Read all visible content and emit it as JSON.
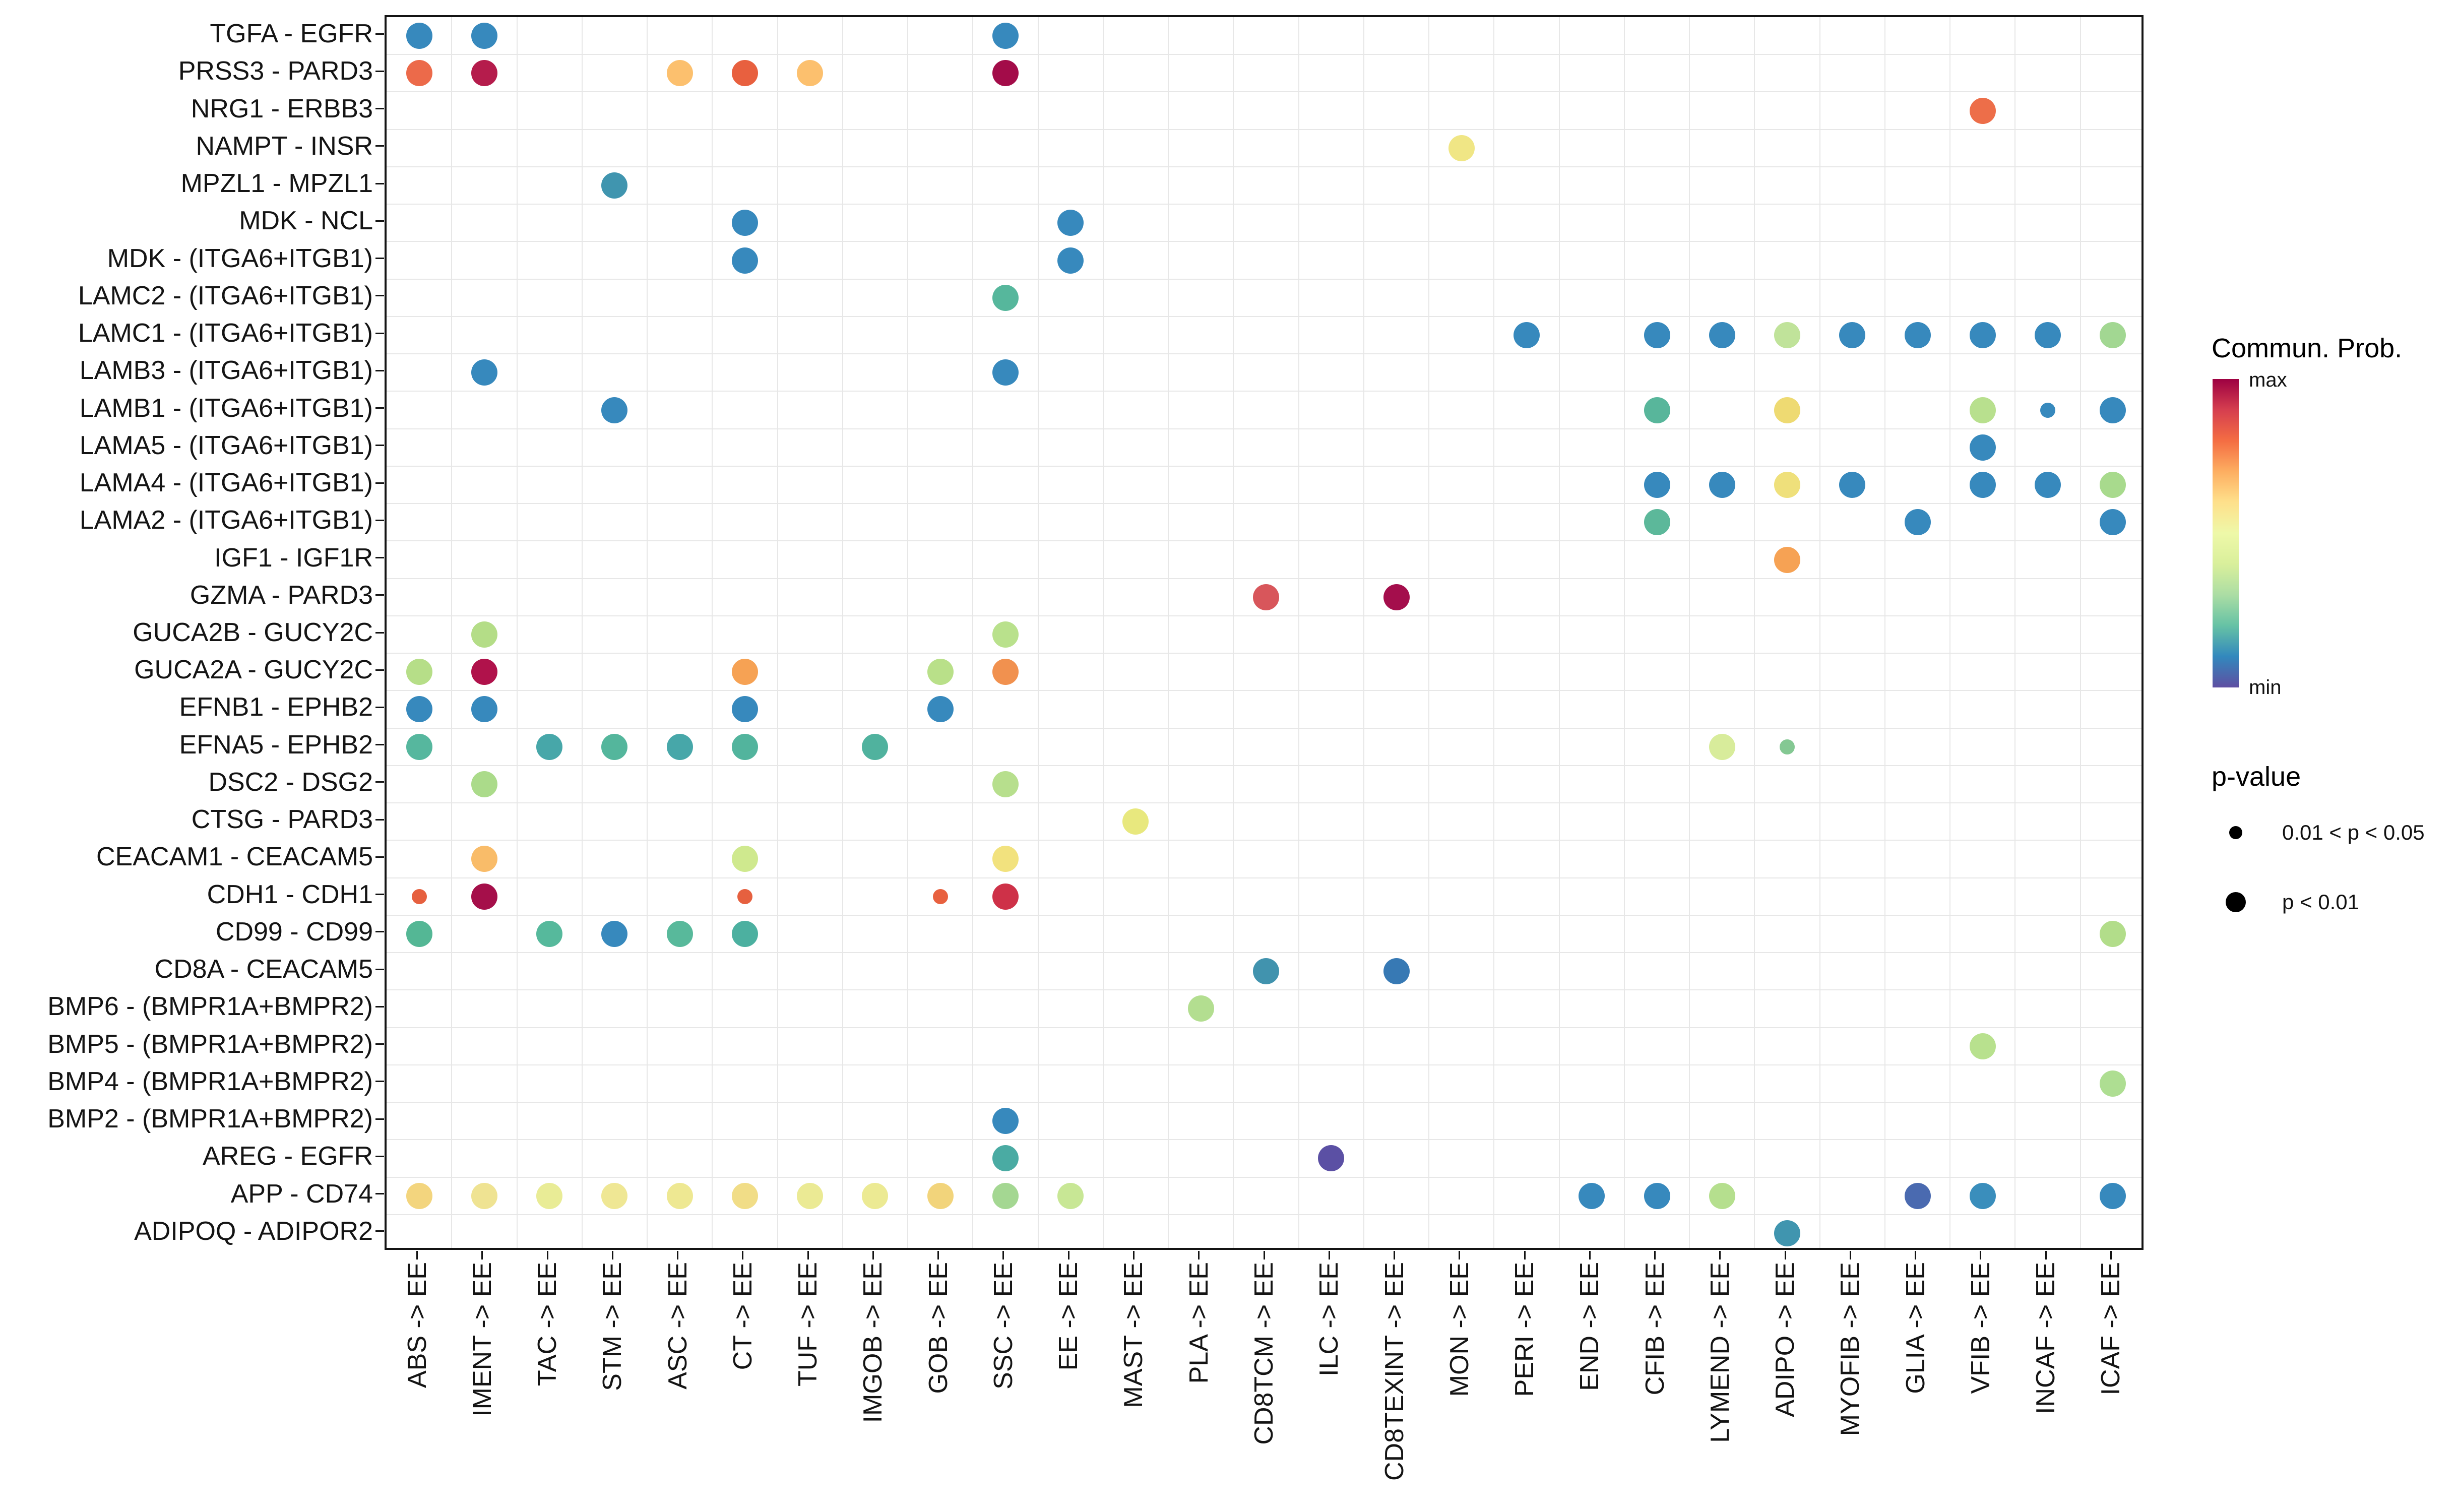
{
  "chart_data": {
    "type": "scatter",
    "title": "",
    "xlabel": "",
    "ylabel": "",
    "grid": true,
    "legend_position": "right",
    "x_categories": [
      "ABS -> EE",
      "IMENT -> EE",
      "TAC -> EE",
      "STM -> EE",
      "ASC -> EE",
      "CT -> EE",
      "TUF -> EE",
      "IMGOB -> EE",
      "GOB -> EE",
      "SSC -> EE",
      "EE -> EE",
      "MAST -> EE",
      "PLA -> EE",
      "CD8TCM -> EE",
      "ILC -> EE",
      "CD8TEXINT -> EE",
      "MON -> EE",
      "PERI -> EE",
      "END -> EE",
      "CFIB -> EE",
      "LYMEND -> EE",
      "ADIPO -> EE",
      "MYOFIB -> EE",
      "GLIA -> EE",
      "VFIB -> EE",
      "INCAF -> EE",
      "ICAF -> EE"
    ],
    "y_categories": [
      "TGFA - EGFR",
      "PRSS3 - PARD3",
      "NRG1 - ERBB3",
      "NAMPT - INSR",
      "MPZL1 - MPZL1",
      "MDK - NCL",
      "MDK - (ITGA6+ITGB1)",
      "LAMC2 - (ITGA6+ITGB1)",
      "LAMC1 - (ITGA6+ITGB1)",
      "LAMB3 - (ITGA6+ITGB1)",
      "LAMB1 - (ITGA6+ITGB1)",
      "LAMA5 - (ITGA6+ITGB1)",
      "LAMA4 - (ITGA6+ITGB1)",
      "LAMA2 - (ITGA6+ITGB1)",
      "IGF1 - IGF1R",
      "GZMA - PARD3",
      "GUCA2B - GUCY2C",
      "GUCA2A - GUCY2C",
      "EFNB1 - EPHB2",
      "EFNA5 - EPHB2",
      "DSC2 - DSG2",
      "CTSG - PARD3",
      "CEACAM1 - CEACAM5",
      "CDH1 - CDH1",
      "CD99 - CD99",
      "CD8A - CEACAM5",
      "BMP6 - (BMPR1A+BMPR2)",
      "BMP5 - (BMPR1A+BMPR2)",
      "BMP4 - (BMPR1A+BMPR2)",
      "BMP2 - (BMPR1A+BMPR2)",
      "AREG - EGFR",
      "APP - CD74",
      "ADIPOQ - ADIPOR2"
    ],
    "points": [
      {
        "xi": 0,
        "yi": 0,
        "color": "#3789bd",
        "p": "p < 0.01"
      },
      {
        "xi": 1,
        "yi": 0,
        "color": "#3789bd",
        "p": "p < 0.01"
      },
      {
        "xi": 9,
        "yi": 0,
        "color": "#3789bd",
        "p": "p < 0.01"
      },
      {
        "xi": 0,
        "yi": 1,
        "color": "#ec6a4a",
        "p": "p < 0.01"
      },
      {
        "xi": 1,
        "yi": 1,
        "color": "#b51c4c",
        "p": "p < 0.01"
      },
      {
        "xi": 4,
        "yi": 1,
        "color": "#fcc06e",
        "p": "p < 0.01"
      },
      {
        "xi": 5,
        "yi": 1,
        "color": "#e8603f",
        "p": "p < 0.01"
      },
      {
        "xi": 6,
        "yi": 1,
        "color": "#fcc06e",
        "p": "p < 0.01"
      },
      {
        "xi": 9,
        "yi": 1,
        "color": "#a30c49",
        "p": "p < 0.01"
      },
      {
        "xi": 24,
        "yi": 2,
        "color": "#ed6e49",
        "p": "p < 0.01"
      },
      {
        "xi": 16,
        "yi": 3,
        "color": "#f0e685",
        "p": "p < 0.01"
      },
      {
        "xi": 3,
        "yi": 4,
        "color": "#4095af",
        "p": "p < 0.01"
      },
      {
        "xi": 5,
        "yi": 5,
        "color": "#3789bd",
        "p": "p < 0.01"
      },
      {
        "xi": 10,
        "yi": 5,
        "color": "#3789bd",
        "p": "p < 0.01"
      },
      {
        "xi": 5,
        "yi": 6,
        "color": "#3789bd",
        "p": "p < 0.01"
      },
      {
        "xi": 10,
        "yi": 6,
        "color": "#3789bd",
        "p": "p < 0.01"
      },
      {
        "xi": 9,
        "yi": 7,
        "color": "#56b79c",
        "p": "p < 0.01"
      },
      {
        "xi": 17,
        "yi": 8,
        "color": "#3789bd",
        "p": "p < 0.01"
      },
      {
        "xi": 19,
        "yi": 8,
        "color": "#3789bd",
        "p": "p < 0.01"
      },
      {
        "xi": 20,
        "yi": 8,
        "color": "#3789bd",
        "p": "p < 0.01"
      },
      {
        "xi": 21,
        "yi": 8,
        "color": "#c0e39a",
        "p": "p < 0.01"
      },
      {
        "xi": 22,
        "yi": 8,
        "color": "#3789bd",
        "p": "p < 0.01"
      },
      {
        "xi": 23,
        "yi": 8,
        "color": "#3789bd",
        "p": "p < 0.01"
      },
      {
        "xi": 24,
        "yi": 8,
        "color": "#3789bd",
        "p": "p < 0.01"
      },
      {
        "xi": 25,
        "yi": 8,
        "color": "#3789bd",
        "p": "p < 0.01"
      },
      {
        "xi": 26,
        "yi": 8,
        "color": "#a2d792",
        "p": "p < 0.01"
      },
      {
        "xi": 1,
        "yi": 9,
        "color": "#3789bd",
        "p": "p < 0.01"
      },
      {
        "xi": 9,
        "yi": 9,
        "color": "#3789bd",
        "p": "p < 0.01"
      },
      {
        "xi": 3,
        "yi": 10,
        "color": "#3789bd",
        "p": "p < 0.01"
      },
      {
        "xi": 19,
        "yi": 10,
        "color": "#58b69b",
        "p": "p < 0.01"
      },
      {
        "xi": 21,
        "yi": 10,
        "color": "#eeda72",
        "p": "p < 0.01"
      },
      {
        "xi": 24,
        "yi": 10,
        "color": "#b8e08e",
        "p": "p < 0.01"
      },
      {
        "xi": 25,
        "yi": 10,
        "color": "#3789bd",
        "p": "0.01 < p < 0.05"
      },
      {
        "xi": 26,
        "yi": 10,
        "color": "#3789bd",
        "p": "p < 0.01"
      },
      {
        "xi": 24,
        "yi": 11,
        "color": "#3789bd",
        "p": "p < 0.01"
      },
      {
        "xi": 19,
        "yi": 12,
        "color": "#3789bd",
        "p": "p < 0.01"
      },
      {
        "xi": 20,
        "yi": 12,
        "color": "#3789bd",
        "p": "p < 0.01"
      },
      {
        "xi": 21,
        "yi": 12,
        "color": "#efe07b",
        "p": "p < 0.01"
      },
      {
        "xi": 22,
        "yi": 12,
        "color": "#3789bd",
        "p": "p < 0.01"
      },
      {
        "xi": 24,
        "yi": 12,
        "color": "#3789bd",
        "p": "p < 0.01"
      },
      {
        "xi": 25,
        "yi": 12,
        "color": "#3789bd",
        "p": "p < 0.01"
      },
      {
        "xi": 26,
        "yi": 12,
        "color": "#a8da8d",
        "p": "p < 0.01"
      },
      {
        "xi": 19,
        "yi": 13,
        "color": "#5cb89a",
        "p": "p < 0.01"
      },
      {
        "xi": 23,
        "yi": 13,
        "color": "#3789bd",
        "p": "p < 0.01"
      },
      {
        "xi": 26,
        "yi": 13,
        "color": "#3789bd",
        "p": "p < 0.01"
      },
      {
        "xi": 21,
        "yi": 14,
        "color": "#f6a254",
        "p": "p < 0.01"
      },
      {
        "xi": 13,
        "yi": 15,
        "color": "#d8565b",
        "p": "p < 0.01"
      },
      {
        "xi": 15,
        "yi": 15,
        "color": "#a40e4c",
        "p": "p < 0.01"
      },
      {
        "xi": 1,
        "yi": 16,
        "color": "#b4dd87",
        "p": "p < 0.01"
      },
      {
        "xi": 9,
        "yi": 16,
        "color": "#b9e18c",
        "p": "p < 0.01"
      },
      {
        "xi": 0,
        "yi": 17,
        "color": "#b6de88",
        "p": "p < 0.01"
      },
      {
        "xi": 1,
        "yi": 17,
        "color": "#b0124b",
        "p": "p < 0.01"
      },
      {
        "xi": 5,
        "yi": 17,
        "color": "#f6a254",
        "p": "p < 0.01"
      },
      {
        "xi": 8,
        "yi": 17,
        "color": "#b9e089",
        "p": "p < 0.01"
      },
      {
        "xi": 9,
        "yi": 17,
        "color": "#f1914f",
        "p": "p < 0.01"
      },
      {
        "xi": 0,
        "yi": 18,
        "color": "#3789bd",
        "p": "p < 0.01"
      },
      {
        "xi": 1,
        "yi": 18,
        "color": "#3789bd",
        "p": "p < 0.01"
      },
      {
        "xi": 5,
        "yi": 18,
        "color": "#3789bd",
        "p": "p < 0.01"
      },
      {
        "xi": 8,
        "yi": 18,
        "color": "#3789bd",
        "p": "p < 0.01"
      },
      {
        "xi": 0,
        "yi": 19,
        "color": "#56b79e",
        "p": "p < 0.01"
      },
      {
        "xi": 2,
        "yi": 19,
        "color": "#47a7a9",
        "p": "p < 0.01"
      },
      {
        "xi": 3,
        "yi": 19,
        "color": "#54b69c",
        "p": "p < 0.01"
      },
      {
        "xi": 4,
        "yi": 19,
        "color": "#47a7a9",
        "p": "p < 0.01"
      },
      {
        "xi": 5,
        "yi": 19,
        "color": "#52b49d",
        "p": "p < 0.01"
      },
      {
        "xi": 7,
        "yi": 19,
        "color": "#50b29e",
        "p": "p < 0.01"
      },
      {
        "xi": 20,
        "yi": 19,
        "color": "#d8ec9b",
        "p": "p < 0.01"
      },
      {
        "xi": 21,
        "yi": 19,
        "color": "#84c893",
        "p": "0.01 < p < 0.05"
      },
      {
        "xi": 1,
        "yi": 20,
        "color": "#abdb8a",
        "p": "p < 0.01"
      },
      {
        "xi": 9,
        "yi": 20,
        "color": "#b7df8d",
        "p": "p < 0.01"
      },
      {
        "xi": 11,
        "yi": 21,
        "color": "#e8e87e",
        "p": "p < 0.01"
      },
      {
        "xi": 1,
        "yi": 22,
        "color": "#f9bc69",
        "p": "p < 0.01"
      },
      {
        "xi": 5,
        "yi": 22,
        "color": "#cfe98e",
        "p": "p < 0.01"
      },
      {
        "xi": 9,
        "yi": 22,
        "color": "#f2e27e",
        "p": "p < 0.01"
      },
      {
        "xi": 0,
        "yi": 23,
        "color": "#e6603f",
        "p": "0.01 < p < 0.05"
      },
      {
        "xi": 1,
        "yi": 23,
        "color": "#a50f4a",
        "p": "p < 0.01"
      },
      {
        "xi": 5,
        "yi": 23,
        "color": "#e6603f",
        "p": "0.01 < p < 0.05"
      },
      {
        "xi": 8,
        "yi": 23,
        "color": "#e8613f",
        "p": "0.01 < p < 0.05"
      },
      {
        "xi": 9,
        "yi": 23,
        "color": "#ce3148",
        "p": "p < 0.01"
      },
      {
        "xi": 0,
        "yi": 24,
        "color": "#54b795",
        "p": "p < 0.01"
      },
      {
        "xi": 2,
        "yi": 24,
        "color": "#56b99c",
        "p": "p < 0.01"
      },
      {
        "xi": 3,
        "yi": 24,
        "color": "#3789bd",
        "p": "p < 0.01"
      },
      {
        "xi": 4,
        "yi": 24,
        "color": "#58b99b",
        "p": "p < 0.01"
      },
      {
        "xi": 5,
        "yi": 24,
        "color": "#4cb0a0",
        "p": "p < 0.01"
      },
      {
        "xi": 26,
        "yi": 24,
        "color": "#b2dd8a",
        "p": "p < 0.01"
      },
      {
        "xi": 13,
        "yi": 25,
        "color": "#4193ae",
        "p": "p < 0.01"
      },
      {
        "xi": 15,
        "yi": 25,
        "color": "#3779b4",
        "p": "p < 0.01"
      },
      {
        "xi": 12,
        "yi": 26,
        "color": "#b3de90",
        "p": "p < 0.01"
      },
      {
        "xi": 24,
        "yi": 27,
        "color": "#b8e18e",
        "p": "p < 0.01"
      },
      {
        "xi": 26,
        "yi": 28,
        "color": "#aede92",
        "p": "p < 0.01"
      },
      {
        "xi": 9,
        "yi": 29,
        "color": "#3789bd",
        "p": "p < 0.01"
      },
      {
        "xi": 9,
        "yi": 30,
        "color": "#4aaba3",
        "p": "p < 0.01"
      },
      {
        "xi": 14,
        "yi": 30,
        "color": "#5b50a4",
        "p": "p < 0.01"
      },
      {
        "xi": 0,
        "yi": 31,
        "color": "#f3d57e",
        "p": "p < 0.01"
      },
      {
        "xi": 1,
        "yi": 31,
        "color": "#efe392",
        "p": "p < 0.01"
      },
      {
        "xi": 2,
        "yi": 31,
        "color": "#e9ec96",
        "p": "p < 0.01"
      },
      {
        "xi": 3,
        "yi": 31,
        "color": "#efe794",
        "p": "p < 0.01"
      },
      {
        "xi": 4,
        "yi": 31,
        "color": "#eee892",
        "p": "p < 0.01"
      },
      {
        "xi": 5,
        "yi": 31,
        "color": "#f1dd87",
        "p": "p < 0.01"
      },
      {
        "xi": 6,
        "yi": 31,
        "color": "#ebea94",
        "p": "p < 0.01"
      },
      {
        "xi": 7,
        "yi": 31,
        "color": "#ecea93",
        "p": "p < 0.01"
      },
      {
        "xi": 8,
        "yi": 31,
        "color": "#f2d47b",
        "p": "p < 0.01"
      },
      {
        "xi": 9,
        "yi": 31,
        "color": "#a4d792",
        "p": "p < 0.01"
      },
      {
        "xi": 10,
        "yi": 31,
        "color": "#c8e795",
        "p": "p < 0.01"
      },
      {
        "xi": 18,
        "yi": 31,
        "color": "#3789bd",
        "p": "p < 0.01"
      },
      {
        "xi": 19,
        "yi": 31,
        "color": "#3789bd",
        "p": "p < 0.01"
      },
      {
        "xi": 20,
        "yi": 31,
        "color": "#b5df8e",
        "p": "p < 0.01"
      },
      {
        "xi": 23,
        "yi": 31,
        "color": "#4a6ab0",
        "p": "p < 0.01"
      },
      {
        "xi": 24,
        "yi": 31,
        "color": "#3a8ebc",
        "p": "p < 0.01"
      },
      {
        "xi": 26,
        "yi": 31,
        "color": "#3789bd",
        "p": "p < 0.01"
      },
      {
        "xi": 21,
        "yi": 32,
        "color": "#4095af",
        "p": "p < 0.01"
      }
    ]
  },
  "legend": {
    "commun_title": "Commun. Prob.",
    "max_label": "max",
    "min_label": "min",
    "colorbar_stops": [
      "#9e0142",
      "#d53e4f",
      "#f46d43",
      "#fdae61",
      "#fee08b",
      "#eef8a8",
      "#d9ef9b",
      "#abdda4",
      "#66c2a5",
      "#3288bd",
      "#5e4fa2"
    ],
    "pvalue_title": "p-value",
    "sizes": [
      {
        "label": "0.01 < p < 0.05",
        "size": "small"
      },
      {
        "label": "p < 0.01",
        "size": "large"
      }
    ]
  }
}
